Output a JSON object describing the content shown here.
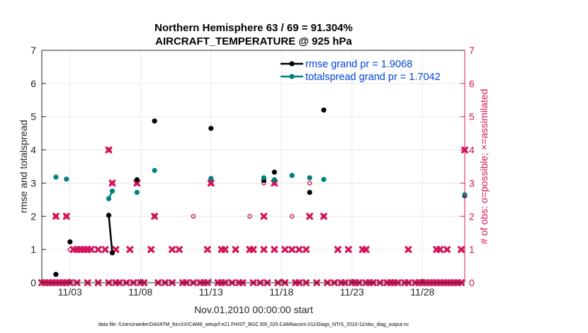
{
  "colors": {
    "rmse": "#000000",
    "spread": "#008080",
    "obs": "#d4145a",
    "legend_text": "#0044dd"
  },
  "chart_data": {
    "type": "line",
    "title": "Northern Hemisphere 63 / 69 = 91.304%",
    "subtitle": "AIRCRAFT_TEMPERATURE @ 925 hPa",
    "xlabel": "Nov.01,2010 00:00:00 start",
    "ylabel": "rmse and totalspread",
    "ylabel_right": "# of obs: o=possible; ×=assimilated",
    "footnote": "data file: /Users/raeder/DAI/ATM_forcXX/CAM6_setup/f.e21.FHIST_BGC.f09_025.CAM6assim.011/Diags_NTrS_2010-11/obs_diag_output.nc",
    "xlim": [
      1.0,
      31.0
    ],
    "ylim": [
      0,
      7
    ],
    "ylim_right": [
      0,
      7
    ],
    "xticks": [
      3,
      8,
      13,
      18,
      23,
      28
    ],
    "xtick_labels": [
      "11/03",
      "11/08",
      "11/13",
      "11/18",
      "11/23",
      "11/28"
    ],
    "yticks": [
      0,
      1,
      2,
      3,
      4,
      5,
      6,
      7
    ],
    "ytick_labels": [
      "0",
      "1",
      "2",
      "3",
      "4",
      "5",
      "6",
      "7"
    ],
    "ytick_labels_right": [
      "0",
      "1",
      "2",
      "3",
      "4",
      "5",
      "6",
      "7"
    ],
    "legend_position": "top-right",
    "series": [
      {
        "name": "rmse grand pr = 1.9068",
        "key": "rmse",
        "points": [
          [
            2.0,
            0.25
          ],
          [
            3.0,
            1.23
          ],
          [
            5.75,
            2.03
          ],
          [
            6.0,
            0.9
          ],
          [
            7.75,
            3.1
          ],
          [
            9.0,
            4.87
          ],
          [
            13.0,
            4.65
          ],
          [
            16.75,
            3.08
          ],
          [
            17.5,
            3.33
          ],
          [
            20.0,
            2.72
          ],
          [
            21.0,
            5.2
          ],
          [
            31.0,
            2.62
          ]
        ]
      },
      {
        "name": "totalspread grand pr = 1.7042",
        "key": "spread",
        "points": [
          [
            2.0,
            3.18
          ],
          [
            2.75,
            3.12
          ],
          [
            5.75,
            2.53
          ],
          [
            6.0,
            2.76
          ],
          [
            7.75,
            2.72
          ],
          [
            9.0,
            3.38
          ],
          [
            13.0,
            3.14
          ],
          [
            16.75,
            3.16
          ],
          [
            17.5,
            3.1
          ],
          [
            18.75,
            3.23
          ],
          [
            20.0,
            3.16
          ],
          [
            21.0,
            3.11
          ],
          [
            31.0,
            2.65
          ]
        ]
      }
    ],
    "obs_possible": [
      [
        2.0,
        2
      ],
      [
        2.75,
        2
      ],
      [
        3.0,
        1
      ],
      [
        5.75,
        4
      ],
      [
        6.0,
        3
      ],
      [
        7.75,
        3
      ],
      [
        9.0,
        2
      ],
      [
        11.75,
        2
      ],
      [
        13.0,
        3
      ],
      [
        15.75,
        2
      ],
      [
        16.75,
        3
      ],
      [
        17.5,
        3
      ],
      [
        18.75,
        2
      ],
      [
        20.0,
        3
      ],
      [
        21.0,
        2
      ],
      [
        31.0,
        4
      ]
    ],
    "obs_assimilated": [
      [
        1.0,
        0
      ],
      [
        1.25,
        0
      ],
      [
        1.5,
        0
      ],
      [
        1.75,
        0
      ],
      [
        2.0,
        0
      ],
      [
        2.25,
        0
      ],
      [
        2.5,
        0
      ],
      [
        2.75,
        0
      ],
      [
        3.0,
        0
      ],
      [
        3.5,
        0
      ],
      [
        4.25,
        0
      ],
      [
        5.0,
        0
      ],
      [
        5.75,
        0
      ],
      [
        6.25,
        0
      ],
      [
        6.5,
        0
      ],
      [
        7.0,
        0
      ],
      [
        7.5,
        0
      ],
      [
        8.0,
        0
      ],
      [
        8.25,
        0
      ],
      [
        9.25,
        0
      ],
      [
        9.75,
        0
      ],
      [
        10.25,
        0
      ],
      [
        11.0,
        0
      ],
      [
        11.25,
        0
      ],
      [
        11.75,
        0
      ],
      [
        12.25,
        0
      ],
      [
        12.5,
        0
      ],
      [
        12.75,
        0
      ],
      [
        13.5,
        0
      ],
      [
        13.75,
        0
      ],
      [
        14.0,
        0
      ],
      [
        14.5,
        0
      ],
      [
        15.0,
        0
      ],
      [
        15.25,
        0
      ],
      [
        16.0,
        0
      ],
      [
        16.5,
        0
      ],
      [
        17.0,
        0
      ],
      [
        17.75,
        0
      ],
      [
        18.25,
        0
      ],
      [
        19.0,
        0
      ],
      [
        19.25,
        0
      ],
      [
        19.75,
        0
      ],
      [
        20.5,
        0
      ],
      [
        21.25,
        0
      ],
      [
        21.75,
        0
      ],
      [
        22.25,
        0
      ],
      [
        22.5,
        0
      ],
      [
        23.0,
        0
      ],
      [
        23.25,
        0
      ],
      [
        23.5,
        0
      ],
      [
        24.0,
        0
      ],
      [
        24.25,
        0
      ],
      [
        24.5,
        0
      ],
      [
        25.0,
        0
      ],
      [
        25.5,
        0
      ],
      [
        25.75,
        0
      ],
      [
        26.0,
        0
      ],
      [
        26.25,
        0
      ],
      [
        26.75,
        0
      ],
      [
        27.0,
        0
      ],
      [
        27.5,
        0
      ],
      [
        27.75,
        0
      ],
      [
        28.0,
        0
      ],
      [
        28.25,
        0
      ],
      [
        28.5,
        0
      ],
      [
        28.75,
        0
      ],
      [
        29.0,
        0
      ],
      [
        29.25,
        0
      ],
      [
        29.5,
        0
      ],
      [
        29.75,
        0
      ],
      [
        30.0,
        0
      ],
      [
        30.25,
        0
      ],
      [
        30.5,
        0
      ],
      [
        30.75,
        0
      ],
      [
        2.0,
        2
      ],
      [
        2.75,
        2
      ],
      [
        3.25,
        1
      ],
      [
        3.5,
        1
      ],
      [
        3.75,
        1
      ],
      [
        4.0,
        1
      ],
      [
        4.25,
        1
      ],
      [
        4.5,
        1
      ],
      [
        5.0,
        1
      ],
      [
        5.5,
        1
      ],
      [
        6.25,
        1
      ],
      [
        7.25,
        1
      ],
      [
        8.75,
        1
      ],
      [
        10.25,
        1
      ],
      [
        10.75,
        1
      ],
      [
        12.75,
        1
      ],
      [
        13.75,
        1
      ],
      [
        14.0,
        1
      ],
      [
        14.75,
        1
      ],
      [
        15.75,
        1
      ],
      [
        16.0,
        1
      ],
      [
        16.75,
        1
      ],
      [
        17.5,
        1
      ],
      [
        18.25,
        1
      ],
      [
        18.75,
        1
      ],
      [
        19.25,
        1
      ],
      [
        19.75,
        1
      ],
      [
        22.0,
        1
      ],
      [
        22.75,
        1
      ],
      [
        23.75,
        1
      ],
      [
        24.0,
        1
      ],
      [
        27.0,
        1
      ],
      [
        29.0,
        1
      ],
      [
        29.25,
        1
      ],
      [
        29.75,
        1
      ],
      [
        30.75,
        1
      ],
      [
        5.75,
        4
      ],
      [
        6.0,
        3
      ],
      [
        7.75,
        3
      ],
      [
        9.0,
        2
      ],
      [
        13.0,
        3
      ],
      [
        16.75,
        2
      ],
      [
        17.5,
        3
      ],
      [
        20.0,
        2
      ],
      [
        21.0,
        2
      ],
      [
        31.0,
        4
      ]
    ]
  }
}
